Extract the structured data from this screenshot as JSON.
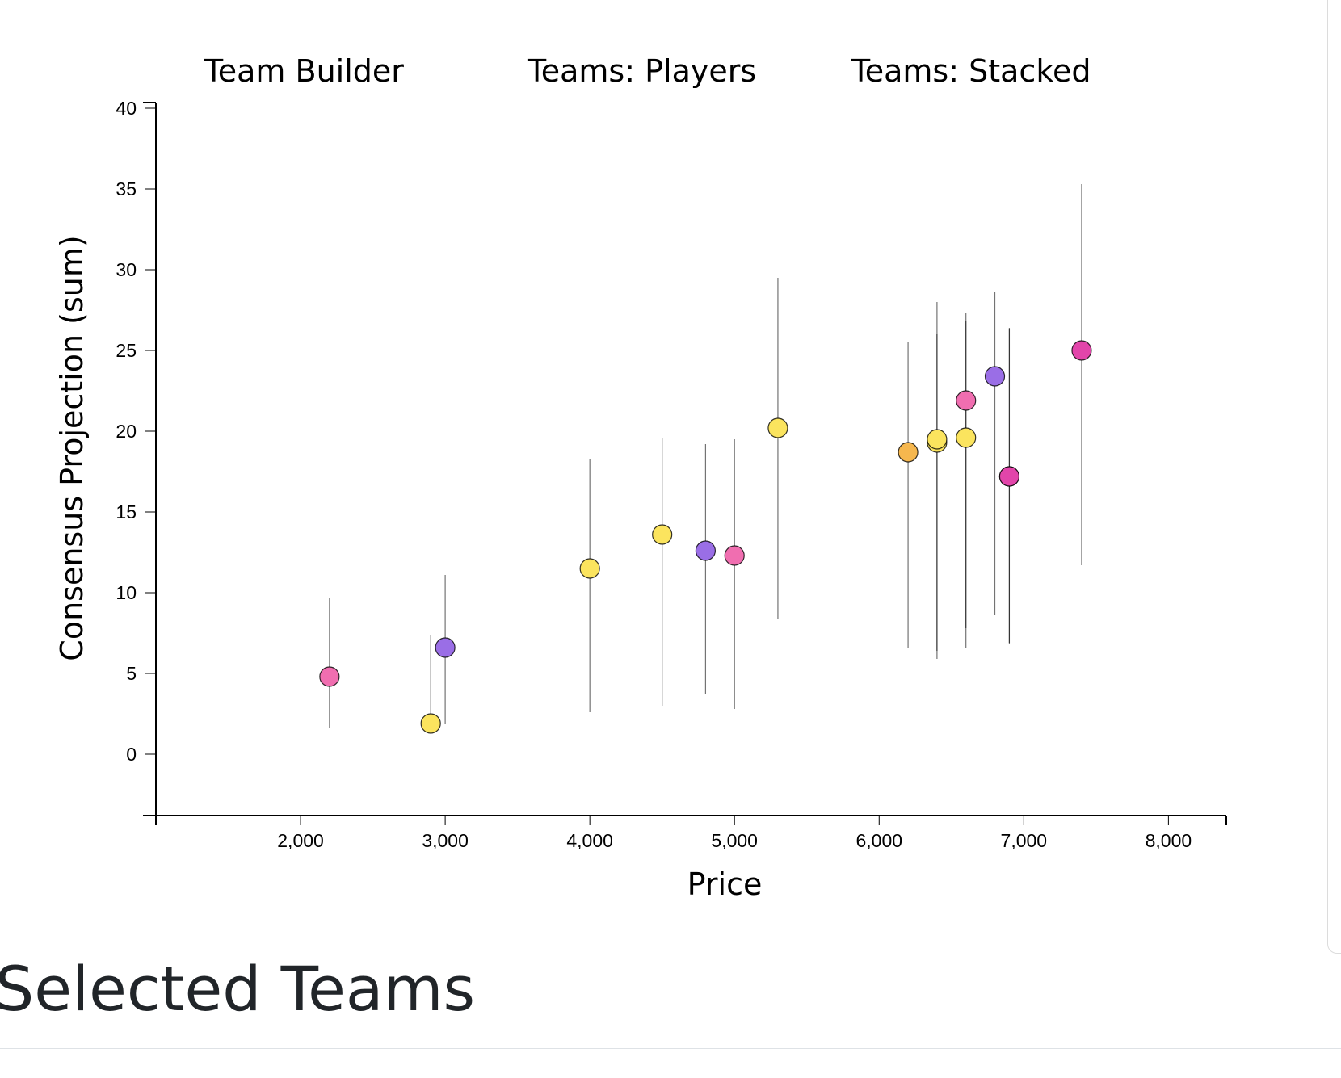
{
  "tabs": [
    {
      "id": "team-builder",
      "label": "Team Builder"
    },
    {
      "id": "teams-players",
      "label": "Teams: Players"
    },
    {
      "id": "teams-stacked",
      "label": "Teams: Stacked"
    }
  ],
  "section": {
    "title": "Selected Teams"
  },
  "colors": {
    "pink": "#f06eb0",
    "yellow": "#fbe45e",
    "purple": "#9a6ee6",
    "orange": "#f6b74e",
    "magenta": "#e245aa"
  },
  "chart_data": {
    "type": "scatter",
    "xlabel": "Price",
    "ylabel": "Consensus Projection (sum)",
    "xlim": [
      1000,
      8400
    ],
    "ylim": [
      -3.8,
      40.2
    ],
    "xticks": [
      2000,
      3000,
      4000,
      5000,
      6000,
      7000,
      8000
    ],
    "xtick_labels": [
      "2,000",
      "3,000",
      "4,000",
      "5,000",
      "6,000",
      "7,000",
      "8,000"
    ],
    "yticks": [
      0,
      5,
      10,
      15,
      20,
      25,
      30,
      35,
      40
    ],
    "ytick_labels": [
      "0",
      "5",
      "10",
      "15",
      "20",
      "25",
      "30",
      "35",
      "40"
    ],
    "grid": false,
    "points": [
      {
        "x": 2200,
        "y": 4.8,
        "low": 1.6,
        "high": 9.7,
        "color": "pink"
      },
      {
        "x": 2900,
        "y": 1.9,
        "low": 1.9,
        "high": 7.4,
        "color": "yellow"
      },
      {
        "x": 3000,
        "y": 6.6,
        "low": 1.9,
        "high": 11.1,
        "color": "purple"
      },
      {
        "x": 4000,
        "y": 11.5,
        "low": 2.6,
        "high": 18.3,
        "color": "yellow"
      },
      {
        "x": 4500,
        "y": 13.6,
        "low": 3.0,
        "high": 19.6,
        "color": "yellow"
      },
      {
        "x": 4800,
        "y": 12.6,
        "low": 3.7,
        "high": 19.2,
        "color": "purple"
      },
      {
        "x": 5000,
        "y": 12.3,
        "low": 2.8,
        "high": 19.5,
        "color": "pink"
      },
      {
        "x": 5300,
        "y": 20.2,
        "low": 8.4,
        "high": 29.5,
        "color": "yellow"
      },
      {
        "x": 6200,
        "y": 18.7,
        "low": 6.6,
        "high": 25.5,
        "color": "orange"
      },
      {
        "x": 6400,
        "y": 19.3,
        "low": 5.9,
        "high": 26.0,
        "color": "yellow"
      },
      {
        "x": 6400,
        "y": 19.5,
        "low": 6.4,
        "high": 28.0,
        "color": "yellow"
      },
      {
        "x": 6600,
        "y": 21.9,
        "low": 7.8,
        "high": 27.3,
        "color": "pink"
      },
      {
        "x": 6600,
        "y": 19.6,
        "low": 6.6,
        "high": 26.8,
        "color": "yellow"
      },
      {
        "x": 6800,
        "y": 23.4,
        "low": 8.6,
        "high": 28.6,
        "color": "purple"
      },
      {
        "x": 6900,
        "y": 17.2,
        "low": 6.8,
        "high": 26.4,
        "color": "magenta"
      },
      {
        "x": 6900,
        "y": 17.2,
        "low": 6.9,
        "high": 26.3,
        "color": "magenta"
      },
      {
        "x": 7400,
        "y": 25.0,
        "low": 11.7,
        "high": 35.3,
        "color": "magenta"
      }
    ]
  }
}
